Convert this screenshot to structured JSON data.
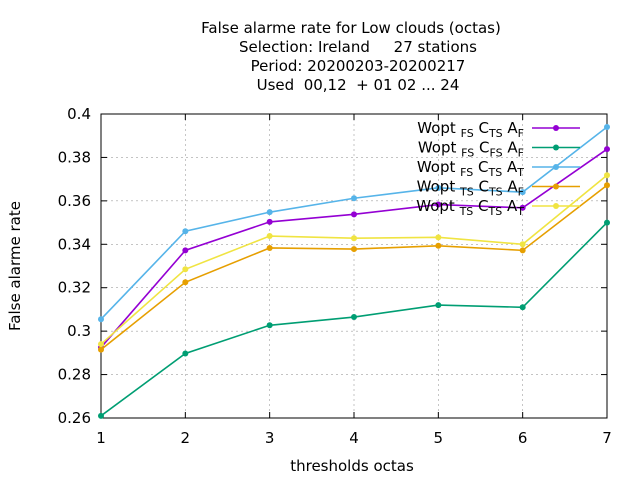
{
  "chart_data": {
    "type": "line",
    "title_lines": [
      "False alarme rate  for Low clouds (octas)",
      "Selection: Ireland     27 stations",
      "Period: 20200203-20200217",
      "Used  00,12  + 01 02 ... 24"
    ],
    "xlabel": "thresholds octas",
    "ylabel": "False alarme rate",
    "x": [
      1,
      2,
      3,
      4,
      5,
      6,
      7
    ],
    "xlim": [
      1,
      7
    ],
    "ylim": [
      0.26,
      0.4
    ],
    "xticks": [
      "1",
      "2",
      "3",
      "4",
      "5",
      "6",
      "7"
    ],
    "yticks": [
      0.26,
      0.28,
      0.3,
      0.32,
      0.34,
      0.36,
      0.38,
      0.4
    ],
    "ytick_labels": [
      "0.26",
      "0.28",
      "0.3",
      "0.32",
      "0.34",
      "0.36",
      "0.38",
      "0.4"
    ],
    "grid": true,
    "legend_position": "top-right",
    "series": [
      {
        "base": "Wopt",
        "s1": "FS",
        "m1": "C",
        "s2": "TS",
        "m2": "A",
        "s3": "F",
        "color": "#9400d3",
        "values": [
          0.2925,
          0.3372,
          0.3503,
          0.3538,
          0.3583,
          0.3568,
          0.3838
        ]
      },
      {
        "base": "Wopt",
        "s1": "FS",
        "m1": "C",
        "s2": "FS",
        "m2": "A",
        "s3": "F",
        "color": "#009e73",
        "values": [
          0.261,
          0.2897,
          0.3027,
          0.3065,
          0.312,
          0.311,
          0.35
        ]
      },
      {
        "base": "Wopt",
        "s1": "FS",
        "m1": "C",
        "s2": "TS",
        "m2": "A",
        "s3": "T",
        "color": "#56b4e9",
        "values": [
          0.3055,
          0.346,
          0.3548,
          0.3612,
          0.366,
          0.364,
          0.394
        ]
      },
      {
        "base": "Wopt",
        "s1": "TS",
        "m1": "C",
        "s2": "TS",
        "m2": "A",
        "s3": "F",
        "color": "#e69f00",
        "values": [
          0.2915,
          0.3225,
          0.3383,
          0.3378,
          0.3393,
          0.3372,
          0.3672
        ]
      },
      {
        "base": "Wopt",
        "s1": "TS",
        "m1": "C",
        "s2": "TS",
        "m2": "A",
        "s3": "T",
        "color": "#f0e442",
        "values": [
          0.294,
          0.3285,
          0.3438,
          0.3428,
          0.3432,
          0.34,
          0.3718
        ]
      }
    ]
  }
}
